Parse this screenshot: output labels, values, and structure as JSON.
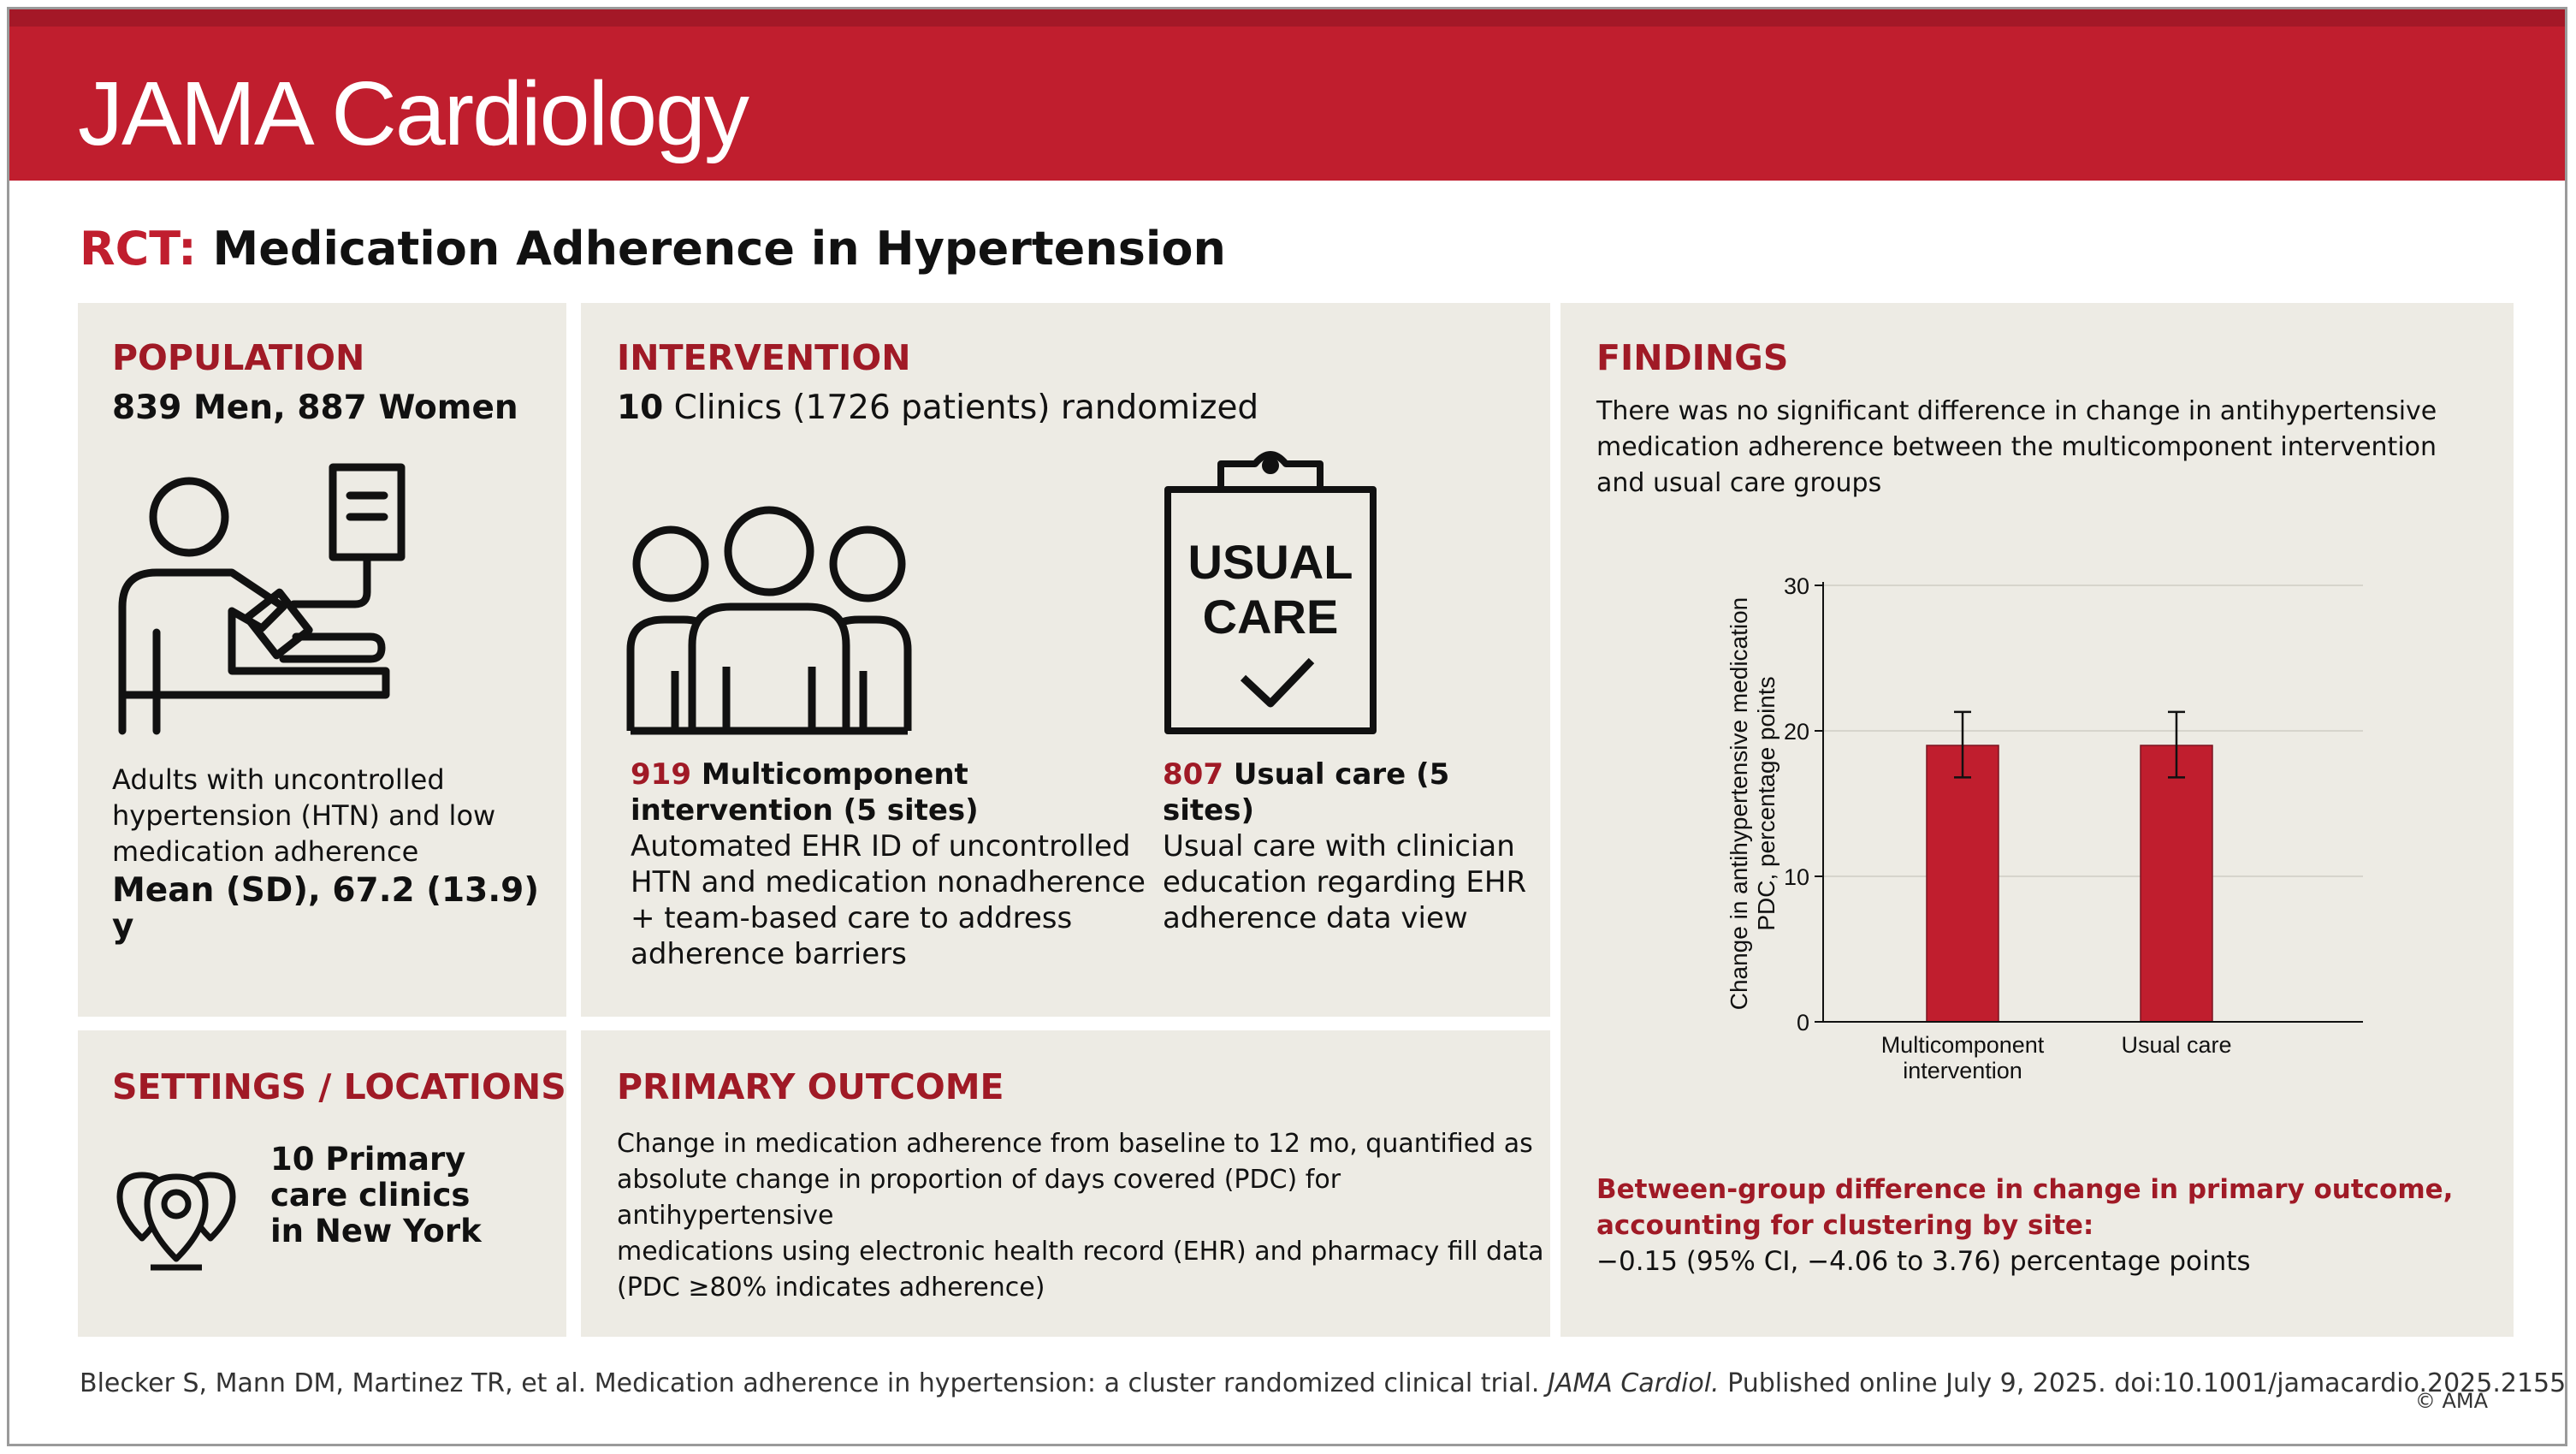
{
  "header": {
    "title": "JAMA Cardiology"
  },
  "page_title": {
    "prefix": "RCT:",
    "text": "Medication Adherence in Hypertension"
  },
  "population": {
    "heading": "POPULATION",
    "counts": "839 Men, 887 Women",
    "desc": [
      "Adults with uncontrolled",
      "hypertension (HTN) and low",
      "medication adherence"
    ],
    "age": "Mean (SD), 67.2 (13.9) y"
  },
  "intervention": {
    "heading": "INTERVENTION",
    "summary_num": "10",
    "summary_text": " Clinics (1726 patients) randomized",
    "multi": {
      "num": "919",
      "title_a": " Multicomponent",
      "title_b": "intervention (5 sites)",
      "desc": [
        "Automated EHR ID of uncontrolled",
        "HTN and medication nonadherence",
        "+ team-based care to address",
        "adherence barriers"
      ]
    },
    "usual": {
      "num": "807",
      "title": " Usual care (5 sites)",
      "desc": [
        "Usual care with clinician",
        "education regarding EHR",
        "adherence data view"
      ]
    },
    "clipboard_text_1": "USUAL",
    "clipboard_text_2": "CARE"
  },
  "settings": {
    "heading": "SETTINGS / LOCATIONS",
    "lines": [
      "10 Primary",
      "care clinics",
      "in New York"
    ]
  },
  "primary_outcome": {
    "heading": "PRIMARY OUTCOME",
    "lines": [
      "Change in medication adherence from baseline to 12 mo, quantified as",
      "absolute change in proportion of days covered (PDC) for antihypertensive",
      "medications using electronic health record (EHR) and pharmacy fill data",
      "(PDC ≥80% indicates adherence)"
    ]
  },
  "findings": {
    "heading": "FINDINGS",
    "lines": [
      "There was no significant difference in change in antihypertensive",
      "medication adherence between the multicomponent intervention",
      "and usual care groups"
    ],
    "diff_heading": [
      "Between-group difference in change in primary outcome,",
      "accounting for clustering by site:"
    ],
    "diff_value": "−0.15 (95% CI, −4.06 to 3.76) percentage points"
  },
  "chart_data": {
    "type": "bar",
    "categories": [
      [
        "Multicomponent",
        "intervention"
      ],
      [
        "Usual care"
      ]
    ],
    "values": [
      19.0,
      19.0
    ],
    "error_low": [
      16.8,
      16.8
    ],
    "error_high": [
      21.3,
      21.3
    ],
    "ylabel_lines": [
      "Change in antihypertensive medication",
      "PDC, percentage points"
    ],
    "ylim": [
      0,
      30
    ],
    "yticks": [
      "0",
      "10",
      "20",
      "30"
    ],
    "grid": true,
    "bar_color": "#c01e2e"
  },
  "citation": {
    "text_a": "Blecker S, Mann DM, Martinez TR, et al. Medication adherence in hypertension: a cluster randomized clinical trial. ",
    "journal": "JAMA Cardiol.",
    "text_b": " Published online July 9, 2025. doi:10.1001/jamacardio.2025.2155"
  },
  "copyright": "© AMA"
}
